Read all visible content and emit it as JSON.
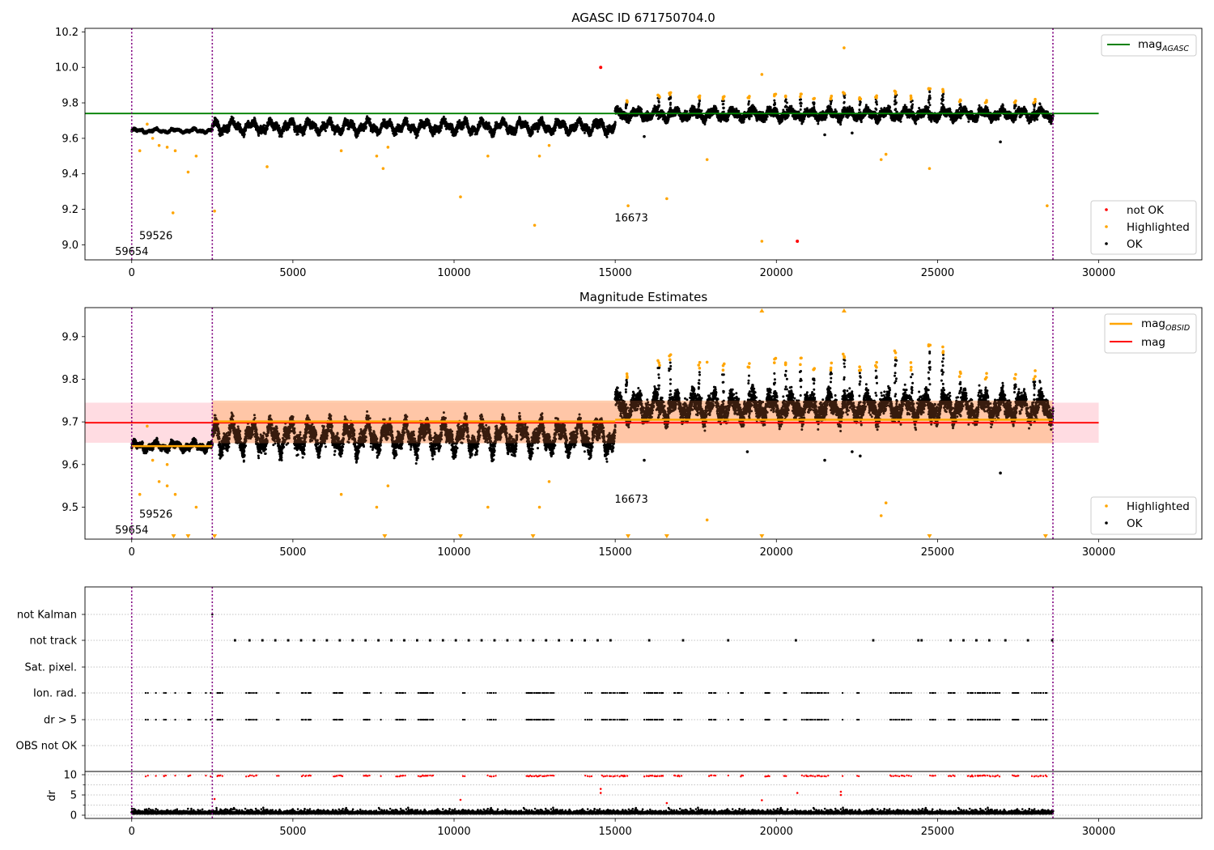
{
  "colors": {
    "ok": "#000000",
    "not_ok": "#ff0000",
    "highlighted": "#ffa500",
    "mag_agasc": "#008000",
    "mag": "#ff0000",
    "mag_obsid": "#ffa500",
    "vline": "#800080",
    "band_mag": "#ffc0cb",
    "band_obsid": "#ffd8b8",
    "dr_flag": "#ff0000",
    "grid": "#b0b0b0"
  },
  "chart_data": [
    {
      "type": "scatter",
      "title": "AGASC ID 671750704.0",
      "xlim": [
        -1450,
        33200
      ],
      "ylim": [
        8.915,
        10.22
      ],
      "xticks": [
        0,
        5000,
        10000,
        15000,
        20000,
        25000,
        30000
      ],
      "yticks": [
        9.0,
        9.2,
        9.4,
        9.6,
        9.8,
        10.0,
        10.2
      ],
      "ytick_labels": [
        "9.0",
        "9.2",
        "9.4",
        "9.6",
        "9.8",
        "10.0",
        "10.2"
      ],
      "obs_boundaries": [
        0,
        2500,
        28580
      ],
      "obs_labels": [
        {
          "x": 0,
          "y": 8.96,
          "text": "59654"
        },
        {
          "x": 750,
          "y": 9.05,
          "text": "59526"
        },
        {
          "x": 15500,
          "y": 9.15,
          "text": "16673"
        }
      ],
      "mag_agasc": {
        "label": "mag",
        "sub": "AGASC",
        "value": 9.74,
        "x": [
          -1450,
          30000
        ]
      },
      "not_ok_points": [
        [
          14550,
          10.0
        ],
        [
          20650,
          9.02
        ]
      ],
      "highlighted_points": [
        [
          250,
          9.53
        ],
        [
          480,
          9.68
        ],
        [
          650,
          9.6
        ],
        [
          850,
          9.56
        ],
        [
          1100,
          9.55
        ],
        [
          1280,
          9.18
        ],
        [
          1350,
          9.53
        ],
        [
          1750,
          9.41
        ],
        [
          2000,
          9.5
        ],
        [
          2570,
          9.19
        ],
        [
          4200,
          9.44
        ],
        [
          6500,
          9.53
        ],
        [
          7600,
          9.5
        ],
        [
          7800,
          9.43
        ],
        [
          7950,
          9.55
        ],
        [
          10200,
          9.27
        ],
        [
          11050,
          9.5
        ],
        [
          12500,
          9.11
        ],
        [
          12650,
          9.5
        ],
        [
          12950,
          9.56
        ],
        [
          15400,
          9.22
        ],
        [
          16600,
          9.26
        ],
        [
          17850,
          9.48
        ],
        [
          19550,
          9.96
        ],
        [
          19550,
          9.02
        ],
        [
          22100,
          10.11
        ],
        [
          23250,
          9.48
        ],
        [
          23400,
          9.51
        ],
        [
          24750,
          9.43
        ],
        [
          28400,
          9.22
        ]
      ],
      "ok_outliers": [
        [
          15900,
          9.61
        ],
        [
          21500,
          9.62
        ],
        [
          22350,
          9.63
        ],
        [
          26950,
          9.58
        ]
      ],
      "legend_top": [
        "mag_agasc"
      ],
      "legend_bottom": [
        {
          "label": "not OK",
          "key": "not_ok"
        },
        {
          "label": "Highlighted",
          "key": "highlighted"
        },
        {
          "label": "OK",
          "key": "ok"
        }
      ]
    },
    {
      "type": "scatter",
      "title": "Magnitude Estimates",
      "xlim": [
        -1450,
        33200
      ],
      "ylim": [
        9.425,
        9.968
      ],
      "xticks": [
        0,
        5000,
        10000,
        15000,
        20000,
        25000,
        30000
      ],
      "yticks": [
        9.5,
        9.6,
        9.7,
        9.8,
        9.9
      ],
      "ytick_labels": [
        "9.5",
        "9.6",
        "9.7",
        "9.8",
        "9.9"
      ],
      "obs_boundaries": [
        0,
        2500,
        28580
      ],
      "obs_labels": [
        {
          "x": 0,
          "y": 9.446,
          "text": "59654"
        },
        {
          "x": 750,
          "y": 9.483,
          "text": "59526"
        },
        {
          "x": 15500,
          "y": 9.518,
          "text": "16673"
        }
      ],
      "mag": {
        "label": "mag",
        "value": 9.698,
        "band": [
          9.651,
          9.745
        ],
        "x": [
          -1450,
          30000
        ]
      },
      "mag_obsid": [
        {
          "x": [
            0,
            2500
          ],
          "value": 9.643,
          "band": [
            9.635,
            9.652
          ]
        },
        {
          "x": [
            2500,
            15000
          ],
          "value": 9.701,
          "band": [
            9.65,
            9.75
          ]
        },
        {
          "x": [
            15000,
            28580
          ],
          "value": 9.705,
          "band": [
            9.65,
            9.75
          ]
        }
      ],
      "highlighted_points": [
        [
          250,
          9.53
        ],
        [
          480,
          9.69
        ],
        [
          650,
          9.61
        ],
        [
          850,
          9.56
        ],
        [
          1100,
          9.55
        ],
        [
          1100,
          9.6
        ],
        [
          1350,
          9.53
        ],
        [
          2000,
          9.5
        ],
        [
          6500,
          9.53
        ],
        [
          7600,
          9.5
        ],
        [
          7950,
          9.55
        ],
        [
          11050,
          9.5
        ],
        [
          12650,
          9.5
        ],
        [
          12950,
          9.56
        ],
        [
          17850,
          9.84
        ],
        [
          17850,
          9.47
        ],
        [
          23250,
          9.48
        ],
        [
          23400,
          9.51
        ]
      ],
      "ok_outliers": [
        [
          15900,
          9.61
        ],
        [
          19100,
          9.63
        ],
        [
          21500,
          9.61
        ],
        [
          22350,
          9.63
        ],
        [
          22600,
          9.62
        ],
        [
          26950,
          9.58
        ]
      ],
      "clipped_low": [
        1300,
        1750,
        2570,
        7850,
        10200,
        12450,
        15400,
        16600,
        19550,
        24750,
        28350
      ],
      "clipped_high": [
        19550,
        22100
      ],
      "legend_top": [
        "mag_obsid",
        "mag"
      ],
      "legend_bottom": [
        {
          "label": "Highlighted",
          "key": "highlighted"
        },
        {
          "label": "OK",
          "key": "ok"
        }
      ]
    },
    {
      "type": "scatter",
      "title": "",
      "xlim": [
        -1450,
        33200
      ],
      "xticks": [
        0,
        5000,
        10000,
        15000,
        20000,
        25000,
        30000
      ],
      "obs_boundaries": [
        0,
        2500,
        28580
      ],
      "flag_rows": [
        "not Kalman",
        "not track",
        "Sat. pixel.",
        "Ion. rad.",
        "dr > 5",
        "OBS not OK"
      ],
      "not_kalman_x": [
        2500
      ],
      "not_track_x": [
        3200,
        3650,
        4050,
        4450,
        4850,
        5250,
        5650,
        6050,
        6450,
        6850,
        7250,
        7650,
        8050,
        8450,
        8850,
        9250,
        9650,
        10050,
        10450,
        10850,
        11250,
        11650,
        12050,
        12450,
        12850,
        13250,
        13650,
        14050,
        14450,
        14850,
        16050,
        17100,
        18500,
        20600,
        23000,
        24400,
        24500,
        25400,
        25800,
        26200,
        26600,
        27100,
        27800,
        28550
      ],
      "dr_panel": {
        "ylabel": "dr",
        "ylim": [
          -0.8,
          10.8
        ],
        "yticks": [
          0,
          5,
          10
        ],
        "ytick_labels": [
          "0",
          "5",
          "10"
        ],
        "minor_yticks": [
          2.5,
          7.5
        ]
      },
      "dr_outliers": [
        [
          14550,
          6.5
        ],
        [
          14550,
          5.5
        ],
        [
          20650,
          5.5
        ],
        [
          22000,
          5.8
        ],
        [
          22000,
          5.0
        ],
        [
          10200,
          3.8
        ],
        [
          19550,
          3.7
        ],
        [
          2570,
          4.0
        ],
        [
          16600,
          3.0
        ]
      ]
    }
  ]
}
